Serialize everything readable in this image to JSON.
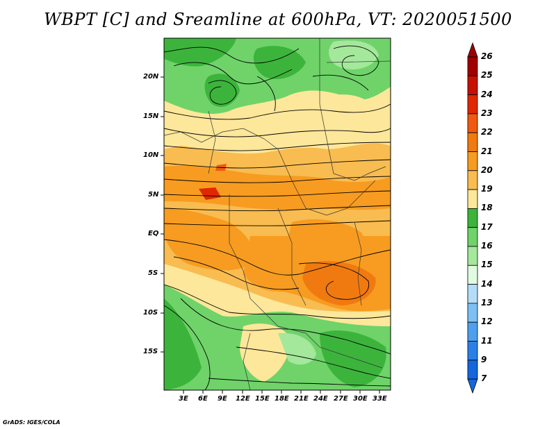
{
  "title": "WBPT [C] and Sreamline at 600hPa, VT: 2020051500",
  "credit": "GrADS: IGES/COLA",
  "lat_labels": [
    "20N",
    "15N",
    "10N",
    "5N",
    "EQ",
    "5S",
    "10S",
    "15S"
  ],
  "lon_labels": [
    "3E",
    "6E",
    "9E",
    "12E",
    "15E",
    "18E",
    "21E",
    "24E",
    "27E",
    "30E",
    "33E"
  ],
  "colorbar": {
    "levels": [
      "26",
      "25",
      "24",
      "23",
      "22",
      "21",
      "20",
      "19",
      "18",
      "17",
      "16",
      "15",
      "14",
      "13",
      "12",
      "11",
      "9",
      "7"
    ],
    "colors": [
      "#a00000",
      "#c81000",
      "#e02800",
      "#f05a10",
      "#f07a10",
      "#f79c20",
      "#f8bc50",
      "#fde79a",
      "#3cb43c",
      "#6fd36a",
      "#a4e89c",
      "#e0fbe0",
      "#b4dcf8",
      "#7cc0f4",
      "#4ea0ee",
      "#2b80e8",
      "#1466dc"
    ],
    "arrow_top": "#a00000",
    "arrow_bottom": "#1466dc"
  },
  "field_colors": {
    "green_dark": "#3cb43c",
    "green": "#6fd36a",
    "green_light": "#a4e89c",
    "yellow": "#fde79a",
    "orange_light": "#f8bc50",
    "orange": "#f79c20",
    "red": "#e02800"
  }
}
